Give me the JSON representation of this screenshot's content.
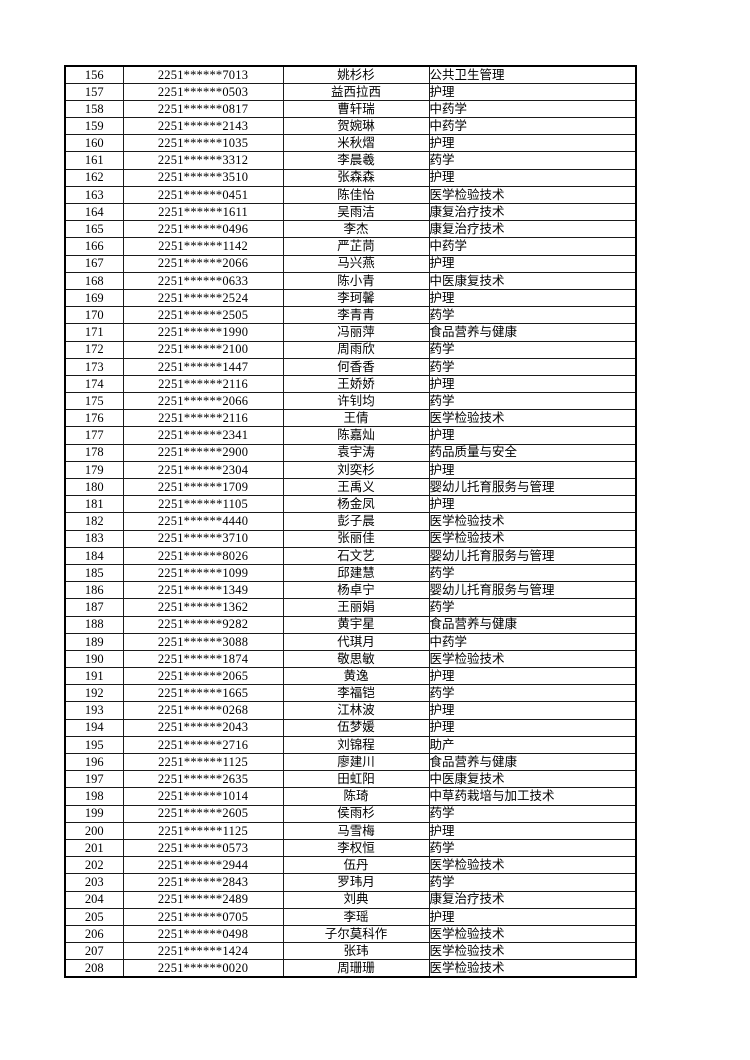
{
  "page": {
    "background_color": "#ffffff",
    "text_color": "#000000",
    "border_color": "#000000"
  },
  "table": {
    "row_range": {
      "first": "156",
      "last": "208"
    },
    "rows": [
      {
        "no": "156",
        "id": "2251******7013",
        "name": "姚杉杉",
        "major": "公共卫生管理"
      },
      {
        "no": "157",
        "id": "2251******0503",
        "name": "益西拉西",
        "major": "护理"
      },
      {
        "no": "158",
        "id": "2251******0817",
        "name": "曹轩瑞",
        "major": "中药学"
      },
      {
        "no": "159",
        "id": "2251******2143",
        "name": "贺婉琳",
        "major": "中药学"
      },
      {
        "no": "160",
        "id": "2251******1035",
        "name": "米秋熠",
        "major": "护理"
      },
      {
        "no": "161",
        "id": "2251******3312",
        "name": "李晨羲",
        "major": "药学"
      },
      {
        "no": "162",
        "id": "2251******3510",
        "name": "张森森",
        "major": "护理"
      },
      {
        "no": "163",
        "id": "2251******0451",
        "name": "陈佳怡",
        "major": "医学检验技术"
      },
      {
        "no": "164",
        "id": "2251******1611",
        "name": "吴雨洁",
        "major": "康复治疗技术"
      },
      {
        "no": "165",
        "id": "2251******0496",
        "name": "李杰",
        "major": "康复治疗技术"
      },
      {
        "no": "166",
        "id": "2251******1142",
        "name": "严芷茼",
        "major": "中药学"
      },
      {
        "no": "167",
        "id": "2251******2066",
        "name": "马兴燕",
        "major": "护理"
      },
      {
        "no": "168",
        "id": "2251******0633",
        "name": "陈小青",
        "major": "中医康复技术"
      },
      {
        "no": "169",
        "id": "2251******2524",
        "name": "李珂馨",
        "major": "护理"
      },
      {
        "no": "170",
        "id": "2251******2505",
        "name": "李青青",
        "major": "药学"
      },
      {
        "no": "171",
        "id": "2251******1990",
        "name": "冯丽萍",
        "major": "食品营养与健康"
      },
      {
        "no": "172",
        "id": "2251******2100",
        "name": "周雨欣",
        "major": "药学"
      },
      {
        "no": "173",
        "id": "2251******1447",
        "name": "何香香",
        "major": "药学"
      },
      {
        "no": "174",
        "id": "2251******2116",
        "name": "王娇娇",
        "major": "护理"
      },
      {
        "no": "175",
        "id": "2251******2066",
        "name": "许钊均",
        "major": "药学"
      },
      {
        "no": "176",
        "id": "2251******2116",
        "name": "王倩",
        "major": "医学检验技术"
      },
      {
        "no": "177",
        "id": "2251******2341",
        "name": "陈嘉灿",
        "major": "护理"
      },
      {
        "no": "178",
        "id": "2251******2900",
        "name": "袁宇涛",
        "major": "药品质量与安全"
      },
      {
        "no": "179",
        "id": "2251******2304",
        "name": "刘奕杉",
        "major": "护理"
      },
      {
        "no": "180",
        "id": "2251******1709",
        "name": "王禹义",
        "major": "婴幼儿托育服务与管理"
      },
      {
        "no": "181",
        "id": "2251******1105",
        "name": "杨金凤",
        "major": "护理"
      },
      {
        "no": "182",
        "id": "2251******4440",
        "name": "彭子晨",
        "major": "医学检验技术"
      },
      {
        "no": "183",
        "id": "2251******3710",
        "name": "张丽佳",
        "major": "医学检验技术"
      },
      {
        "no": "184",
        "id": "2251******8026",
        "name": "石文艺",
        "major": "婴幼儿托育服务与管理"
      },
      {
        "no": "185",
        "id": "2251******1099",
        "name": "邱建慧",
        "major": "药学"
      },
      {
        "no": "186",
        "id": "2251******1349",
        "name": "杨卓宁",
        "major": "婴幼儿托育服务与管理"
      },
      {
        "no": "187",
        "id": "2251******1362",
        "name": "王丽娟",
        "major": "药学"
      },
      {
        "no": "188",
        "id": "2251******9282",
        "name": "黄宇星",
        "major": "食品营养与健康"
      },
      {
        "no": "189",
        "id": "2251******3088",
        "name": "代琪月",
        "major": "中药学"
      },
      {
        "no": "190",
        "id": "2251******1874",
        "name": "敬思敏",
        "major": "医学检验技术"
      },
      {
        "no": "191",
        "id": "2251******2065",
        "name": "黄逸",
        "major": "护理"
      },
      {
        "no": "192",
        "id": "2251******1665",
        "name": "李福铠",
        "major": "药学"
      },
      {
        "no": "193",
        "id": "2251******0268",
        "name": "江林波",
        "major": "护理"
      },
      {
        "no": "194",
        "id": "2251******2043",
        "name": "伍梦媛",
        "major": "护理"
      },
      {
        "no": "195",
        "id": "2251******2716",
        "name": "刘锦程",
        "major": "助产"
      },
      {
        "no": "196",
        "id": "2251******1125",
        "name": "廖建川",
        "major": "食品营养与健康"
      },
      {
        "no": "197",
        "id": "2251******2635",
        "name": "田虹阳",
        "major": "中医康复技术"
      },
      {
        "no": "198",
        "id": "2251******1014",
        "name": "陈琦",
        "major": "中草药栽培与加工技术"
      },
      {
        "no": "199",
        "id": "2251******2605",
        "name": "侯雨杉",
        "major": "药学"
      },
      {
        "no": "200",
        "id": "2251******1125",
        "name": "马雪梅",
        "major": "护理"
      },
      {
        "no": "201",
        "id": "2251******0573",
        "name": "李权恒",
        "major": "药学"
      },
      {
        "no": "202",
        "id": "2251******2944",
        "name": "伍丹",
        "major": "医学检验技术"
      },
      {
        "no": "203",
        "id": "2251******2843",
        "name": "罗玮月",
        "major": "药学"
      },
      {
        "no": "204",
        "id": "2251******2489",
        "name": "刘典",
        "major": "康复治疗技术"
      },
      {
        "no": "205",
        "id": "2251******0705",
        "name": "李瑶",
        "major": "护理"
      },
      {
        "no": "206",
        "id": "2251******0498",
        "name": "子尔莫科作",
        "major": "医学检验技术"
      },
      {
        "no": "207",
        "id": "2251******1424",
        "name": "张玮",
        "major": "医学检验技术"
      },
      {
        "no": "208",
        "id": "2251******0020",
        "name": "周珊珊",
        "major": "医学检验技术"
      }
    ]
  }
}
